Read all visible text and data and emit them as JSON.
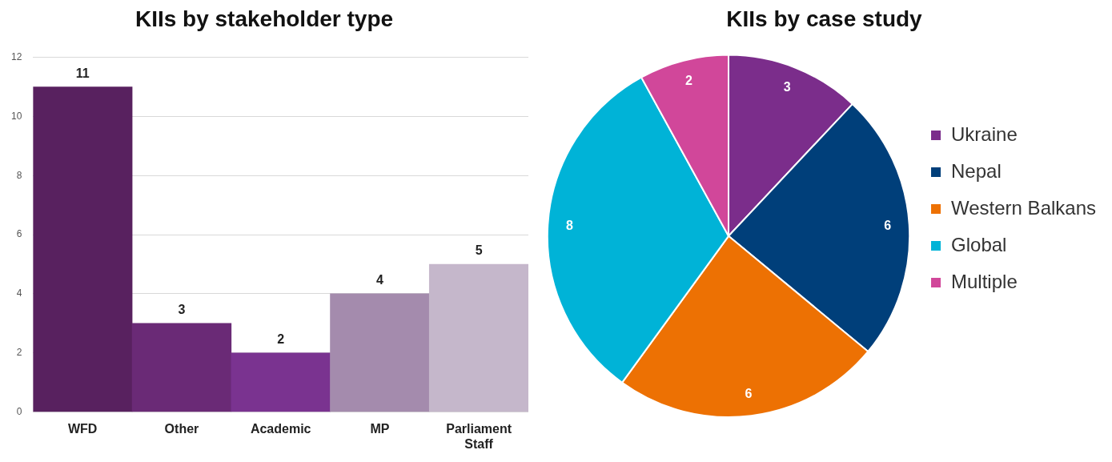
{
  "chart_data": [
    {
      "type": "bar",
      "title": "KIIs by stakeholder type",
      "categories": [
        "WFD",
        "Other",
        "Academic",
        "MP",
        "Parliament Staff"
      ],
      "values": [
        11,
        3,
        2,
        4,
        5
      ],
      "colors": [
        "#58215f",
        "#6a2a76",
        "#7a3390",
        "#a48bad",
        "#c5b7cb"
      ],
      "ylim": [
        0,
        12
      ],
      "yticks": [
        0,
        2,
        4,
        6,
        8,
        10,
        12
      ],
      "grid": "y",
      "data_labels": true
    },
    {
      "type": "pie",
      "title": "KIIs by case study",
      "categories": [
        "Ukraine",
        "Nepal",
        "Western Balkans",
        "Global",
        "Multiple"
      ],
      "values": [
        3,
        6,
        6,
        8,
        2
      ],
      "colors": [
        "#7b2d8b",
        "#003f7a",
        "#ed7103",
        "#00b3d7",
        "#d1479a"
      ],
      "legend": "right",
      "data_labels": true
    }
  ]
}
